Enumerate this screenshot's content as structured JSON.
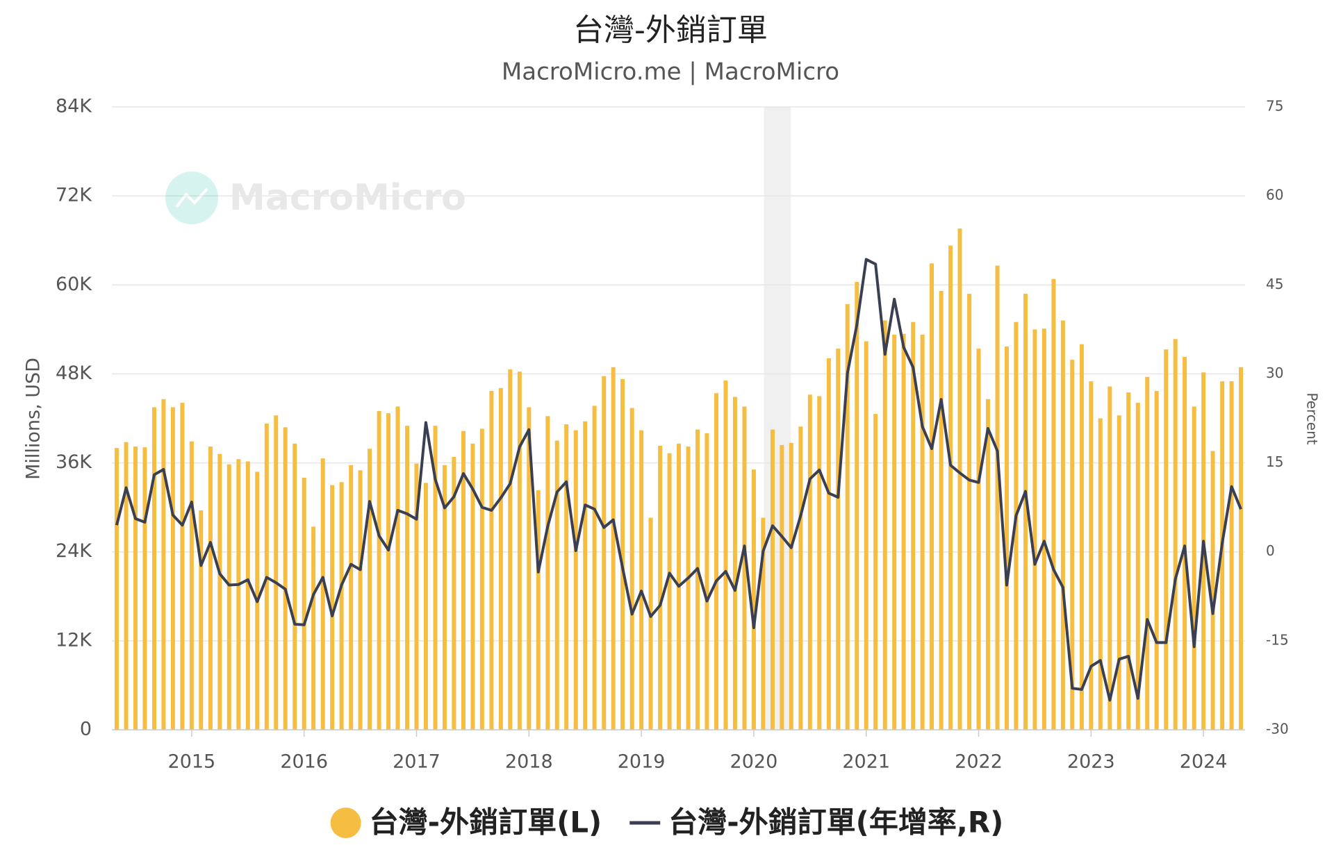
{
  "chart_data": {
    "type": "combo",
    "title": "台灣-外銷訂單",
    "subtitle": "MacroMicro.me | MacroMicro",
    "watermark": "MacroMicro",
    "ylabel": "Millions, USD",
    "y2label": "Percent",
    "x": [
      2014.333,
      2014.417,
      2014.5,
      2014.583,
      2014.667,
      2014.75,
      2014.833,
      2014.917,
      2015,
      2015.083,
      2015.167,
      2015.25,
      2015.333,
      2015.417,
      2015.5,
      2015.583,
      2015.667,
      2015.75,
      2015.833,
      2015.917,
      2016,
      2016.083,
      2016.167,
      2016.25,
      2016.333,
      2016.417,
      2016.5,
      2016.583,
      2016.667,
      2016.75,
      2016.833,
      2016.917,
      2017,
      2017.083,
      2017.167,
      2017.25,
      2017.333,
      2017.417,
      2017.5,
      2017.583,
      2017.667,
      2017.75,
      2017.833,
      2017.917,
      2018,
      2018.083,
      2018.167,
      2018.25,
      2018.333,
      2018.417,
      2018.5,
      2018.583,
      2018.667,
      2018.75,
      2018.833,
      2018.917,
      2019,
      2019.083,
      2019.167,
      2019.25,
      2019.333,
      2019.417,
      2019.5,
      2019.583,
      2019.667,
      2019.75,
      2019.833,
      2019.917,
      2020,
      2020.083,
      2020.167,
      2020.25,
      2020.333,
      2020.417,
      2020.5,
      2020.583,
      2020.667,
      2020.75,
      2020.833,
      2020.917,
      2021,
      2021.083,
      2021.167,
      2021.25,
      2021.333,
      2021.417,
      2021.5,
      2021.583,
      2021.667,
      2021.75,
      2021.833,
      2021.917,
      2022,
      2022.083,
      2022.167,
      2022.25,
      2022.333,
      2022.417,
      2022.5,
      2022.583,
      2022.667,
      2022.75,
      2022.833,
      2022.917,
      2023,
      2023.083,
      2023.167,
      2023.25,
      2023.333,
      2023.417,
      2023.5,
      2023.583,
      2023.667,
      2023.75,
      2023.833,
      2023.917,
      2024,
      2024.083,
      2024.167,
      2024.25,
      2024.333
    ],
    "series": [
      {
        "name": "台灣-外銷訂單(L)",
        "type": "bar",
        "color": "#f5bd42",
        "values": [
          38000,
          38800,
          38200,
          38100,
          43500,
          44600,
          43500,
          44100,
          38900,
          29600,
          38200,
          37200,
          35800,
          36500,
          36200,
          34800,
          41300,
          42400,
          40800,
          38600,
          34000,
          27400,
          36600,
          33000,
          33400,
          35700,
          35000,
          37900,
          43000,
          42700,
          43600,
          41000,
          35900,
          33300,
          41000,
          35700,
          36800,
          40300,
          38600,
          40600,
          45700,
          46100,
          48600,
          48300,
          43500,
          32300,
          42300,
          39000,
          41200,
          40400,
          41600,
          43700,
          47700,
          48900,
          47300,
          43400,
          40400,
          28600,
          38300,
          37300,
          38600,
          38200,
          40500,
          40000,
          45400,
          47100,
          44900,
          43600,
          35100,
          28600,
          40500,
          38400,
          38700,
          40900,
          45200,
          45000,
          50100,
          51400,
          57400,
          60400,
          52400,
          42600,
          55200,
          53300,
          53400,
          55000,
          53300,
          62900,
          59200,
          65300,
          67600,
          58800,
          51400,
          44600,
          62600,
          51700,
          55000,
          58800,
          54000,
          54100,
          60800,
          55200,
          49900,
          52000,
          47000,
          42000,
          46300,
          42400,
          45500,
          44100,
          47600,
          45700,
          51300,
          52700,
          50300,
          43600,
          48200,
          37600,
          47000,
          47000,
          48900
        ]
      },
      {
        "name": "台灣-外銷訂單(年增率,R)",
        "type": "line",
        "axis": "y2",
        "color": "#3a3f51",
        "values": [
          4.5,
          10.8,
          5.6,
          5.0,
          13.0,
          13.9,
          6.2,
          4.5,
          8.4,
          -2.3,
          1.6,
          -3.7,
          -5.6,
          -5.5,
          -4.7,
          -8.4,
          -4.3,
          -5.2,
          -6.3,
          -12.2,
          -12.3,
          -7.2,
          -4.3,
          -10.8,
          -5.6,
          -2.1,
          -3.0,
          8.5,
          2.7,
          0.3,
          7.0,
          6.4,
          5.5,
          21.8,
          12.2,
          7.4,
          9.3,
          13.2,
          10.6,
          7.5,
          7.0,
          9.1,
          11.5,
          17.7,
          20.6,
          -3.4,
          4.3,
          10.1,
          11.8,
          0.2,
          7.9,
          7.2,
          4.1,
          5.4,
          -2.7,
          -10.5,
          -6.6,
          -10.9,
          -9.0,
          -3.6,
          -5.8,
          -4.4,
          -2.8,
          -8.3,
          -4.9,
          -3.3,
          -6.5,
          1.0,
          -12.8,
          0.1,
          4.4,
          2.6,
          0.7,
          6.1,
          12.3,
          13.8,
          9.9,
          9.2,
          30.1,
          38.3,
          49.3,
          48.5,
          33.3,
          42.6,
          34.5,
          31.1,
          21.1,
          17.4,
          25.7,
          14.6,
          13.3,
          12.1,
          11.7,
          20.8,
          17.0,
          -5.6,
          6.1,
          10.2,
          -2.1,
          1.8,
          -3.0,
          -6.0,
          -23.0,
          -23.2,
          -19.3,
          -18.3,
          -25.0,
          -18.1,
          -17.6,
          -24.7,
          -11.4,
          -15.3,
          -15.3,
          -4.6,
          1.0,
          -16.0,
          1.8,
          -10.4,
          1.5,
          11.0,
          7.2
        ]
      }
    ],
    "shaded_range": [
      2020.09,
      2020.33
    ],
    "xlim": [
      2014.29,
      2024.37
    ],
    "xticks": [
      2015,
      2016,
      2017,
      2018,
      2019,
      2020,
      2021,
      2022,
      2023,
      2024
    ],
    "ylim": [
      0,
      84000
    ],
    "yticks": [
      0,
      {
        "value": 12000,
        "label": "12K"
      },
      {
        "value": 24000,
        "label": "24K"
      },
      {
        "value": 36000,
        "label": "36K"
      },
      {
        "value": 48000,
        "label": "48K"
      },
      {
        "value": 60000,
        "label": "60K"
      },
      {
        "value": 72000,
        "label": "72K"
      },
      {
        "value": 84000,
        "label": "84K"
      }
    ],
    "y2lim": [
      -30,
      75
    ],
    "y2ticks": [
      -30,
      -15,
      0,
      15,
      30,
      45,
      60,
      75
    ],
    "grid": true,
    "legend": "bottom"
  }
}
